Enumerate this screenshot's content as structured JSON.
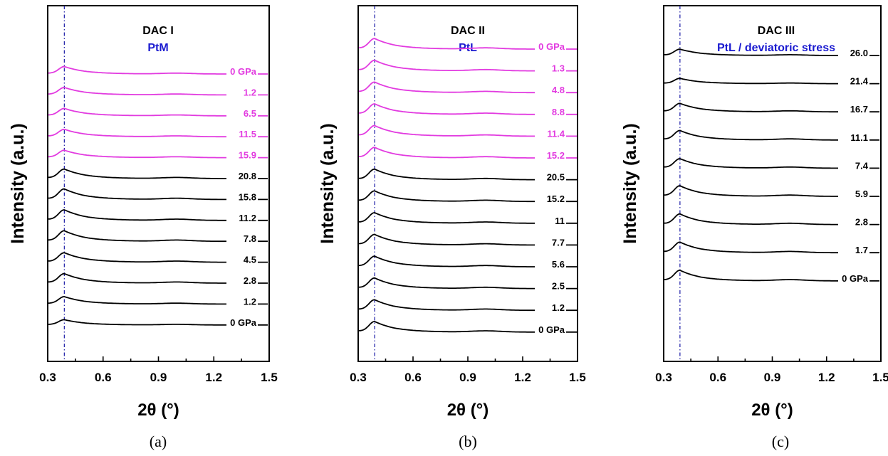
{
  "colors": {
    "low_pressure": "#e23be0",
    "high_pressure": "#000000",
    "reference_line": "#1a1aa6",
    "subtitle": "#1a1ad0"
  },
  "chart_data": [
    {
      "type": "line",
      "panel": "(a)",
      "title": "DAC I",
      "subtitle": "PtM",
      "xlabel": "2θ (°)",
      "ylabel": "Intensity (a.u.)",
      "xlim": [
        0.3,
        1.5
      ],
      "xticks": [
        "0.3",
        "0.6",
        "0.9",
        "1.2",
        "1.5"
      ],
      "reference_x": 0.39,
      "peak_x": 0.39,
      "series": [
        {
          "name": "0 GPa",
          "color": "magenta",
          "peak": 0.7
        },
        {
          "name": "1.2",
          "color": "magenta",
          "peak": 0.7
        },
        {
          "name": "6.5",
          "color": "magenta",
          "peak": 0.7
        },
        {
          "name": "11.5",
          "color": "magenta",
          "peak": 0.7
        },
        {
          "name": "15.9",
          "color": "magenta",
          "peak": 0.7
        },
        {
          "name": "20.8",
          "color": "black",
          "peak": 0.9
        },
        {
          "name": "15.8",
          "color": "black",
          "peak": 1.0
        },
        {
          "name": "11.2",
          "color": "black",
          "peak": 1.0
        },
        {
          "name": "7.8",
          "color": "black",
          "peak": 1.0
        },
        {
          "name": "4.5",
          "color": "black",
          "peak": 0.9
        },
        {
          "name": "2.8",
          "color": "black",
          "peak": 0.9
        },
        {
          "name": "1.2",
          "color": "black",
          "peak": 0.7
        },
        {
          "name": "0 GPa",
          "color": "black",
          "peak": 0.5
        }
      ]
    },
    {
      "type": "line",
      "panel": "(b)",
      "title": "DAC II",
      "subtitle": "PtL",
      "xlabel": "2θ (°)",
      "ylabel": "Intensity (a.u.)",
      "xlim": [
        0.3,
        1.5
      ],
      "xticks": [
        "0.3",
        "0.6",
        "0.9",
        "1.2",
        "1.5"
      ],
      "reference_x": 0.39,
      "peak_x": 0.39,
      "series": [
        {
          "name": "0 GPa",
          "color": "magenta",
          "peak": 1.0
        },
        {
          "name": "1.3",
          "color": "magenta",
          "peak": 1.0
        },
        {
          "name": "4.8",
          "color": "magenta",
          "peak": 1.0
        },
        {
          "name": "8.8",
          "color": "magenta",
          "peak": 1.0
        },
        {
          "name": "11.4",
          "color": "magenta",
          "peak": 1.0
        },
        {
          "name": "15.2",
          "color": "magenta",
          "peak": 1.0
        },
        {
          "name": "20.5",
          "color": "black",
          "peak": 1.0
        },
        {
          "name": "15.2",
          "color": "black",
          "peak": 1.0
        },
        {
          "name": "11",
          "color": "black",
          "peak": 1.0
        },
        {
          "name": "7.7",
          "color": "black",
          "peak": 1.0
        },
        {
          "name": "5.6",
          "color": "black",
          "peak": 1.0
        },
        {
          "name": "2.5",
          "color": "black",
          "peak": 1.0
        },
        {
          "name": "1.2",
          "color": "black",
          "peak": 1.0
        },
        {
          "name": "0 GPa",
          "color": "black",
          "peak": 1.0
        }
      ]
    },
    {
      "type": "line",
      "panel": "(c)",
      "title": "DAC III",
      "subtitle": "PtL / deviatoric stress",
      "xlabel": "2θ (°)",
      "ylabel": "Intensity (a.u.)",
      "xlim": [
        0.3,
        1.5
      ],
      "xticks": [
        "0.3",
        "0.6",
        "0.9",
        "1.2",
        "1.5"
      ],
      "reference_x": 0.39,
      "peak_x": 0.39,
      "series": [
        {
          "name": "26.0",
          "color": "black",
          "peak": 0.6
        },
        {
          "name": "21.4",
          "color": "black",
          "peak": 0.5
        },
        {
          "name": "16.7",
          "color": "black",
          "peak": 0.8
        },
        {
          "name": "11.1",
          "color": "black",
          "peak": 0.9
        },
        {
          "name": "7.4",
          "color": "black",
          "peak": 0.9
        },
        {
          "name": "5.9",
          "color": "black",
          "peak": 1.0
        },
        {
          "name": "2.8",
          "color": "black",
          "peak": 1.0
        },
        {
          "name": "1.7",
          "color": "black",
          "peak": 1.0
        },
        {
          "name": "0 GPa",
          "color": "black",
          "peak": 1.0
        }
      ]
    }
  ]
}
